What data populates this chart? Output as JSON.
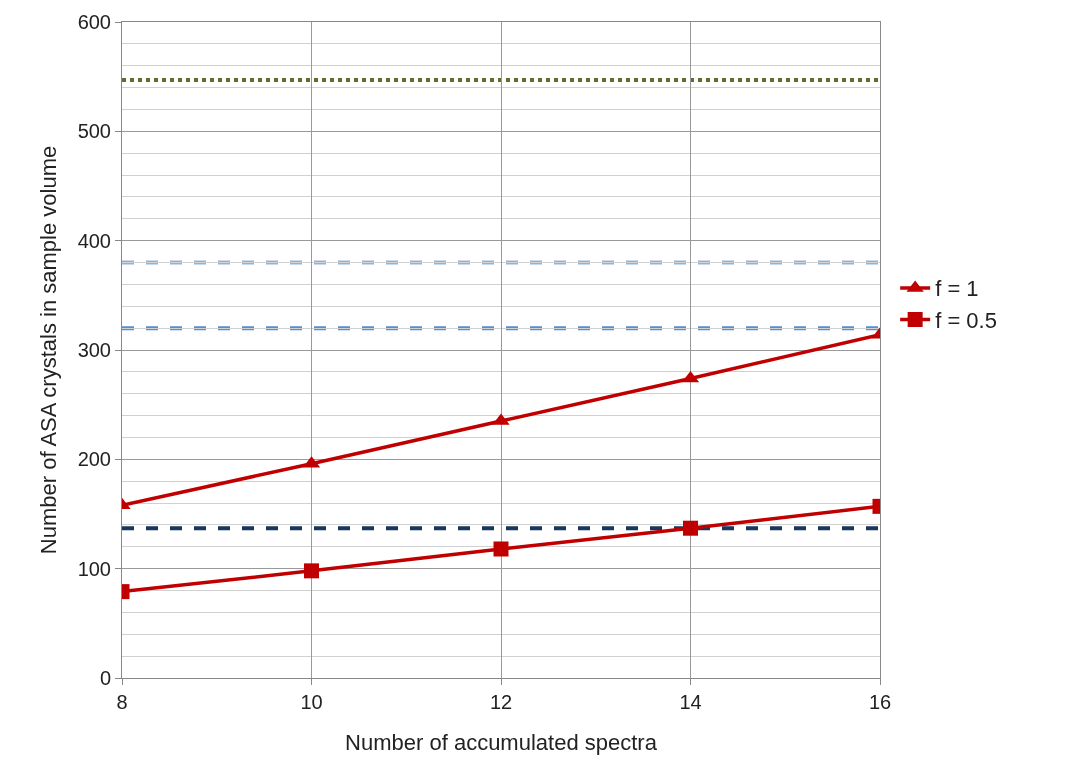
{
  "chart_data": {
    "type": "line",
    "xlabel": "Number of accumulated spectra",
    "ylabel": "Number of ASA crystals in sample volume",
    "x": [
      8,
      10,
      12,
      14,
      16
    ],
    "series": [
      {
        "name": "f = 1",
        "color": "#c00000",
        "marker": "triangle",
        "values": [
          158,
          196,
          235,
          274,
          314
        ]
      },
      {
        "name": "f = 0.5",
        "color": "#c00000",
        "marker": "square",
        "values": [
          79,
          98,
          118,
          137,
          157
        ]
      }
    ],
    "ref_lines": [
      {
        "axis": "y",
        "value": 547,
        "color": "#5f6e2e",
        "line_style": "dotted"
      },
      {
        "axis": "y",
        "value": 380,
        "color": "#8db3e2",
        "line_style": "dashed"
      },
      {
        "axis": "y",
        "value": 320,
        "color": "#4f8fd8",
        "line_style": "dashed"
      },
      {
        "axis": "y",
        "value": 137,
        "color": "#17375e",
        "line_style": "dashed"
      }
    ],
    "xlim": [
      8,
      16
    ],
    "xticks": [
      8,
      10,
      12,
      14,
      16
    ],
    "ylim": [
      0,
      600
    ],
    "yticks": [
      0,
      100,
      200,
      300,
      400,
      500,
      600
    ],
    "grid": true,
    "legend": "right",
    "line_style": "solid"
  }
}
